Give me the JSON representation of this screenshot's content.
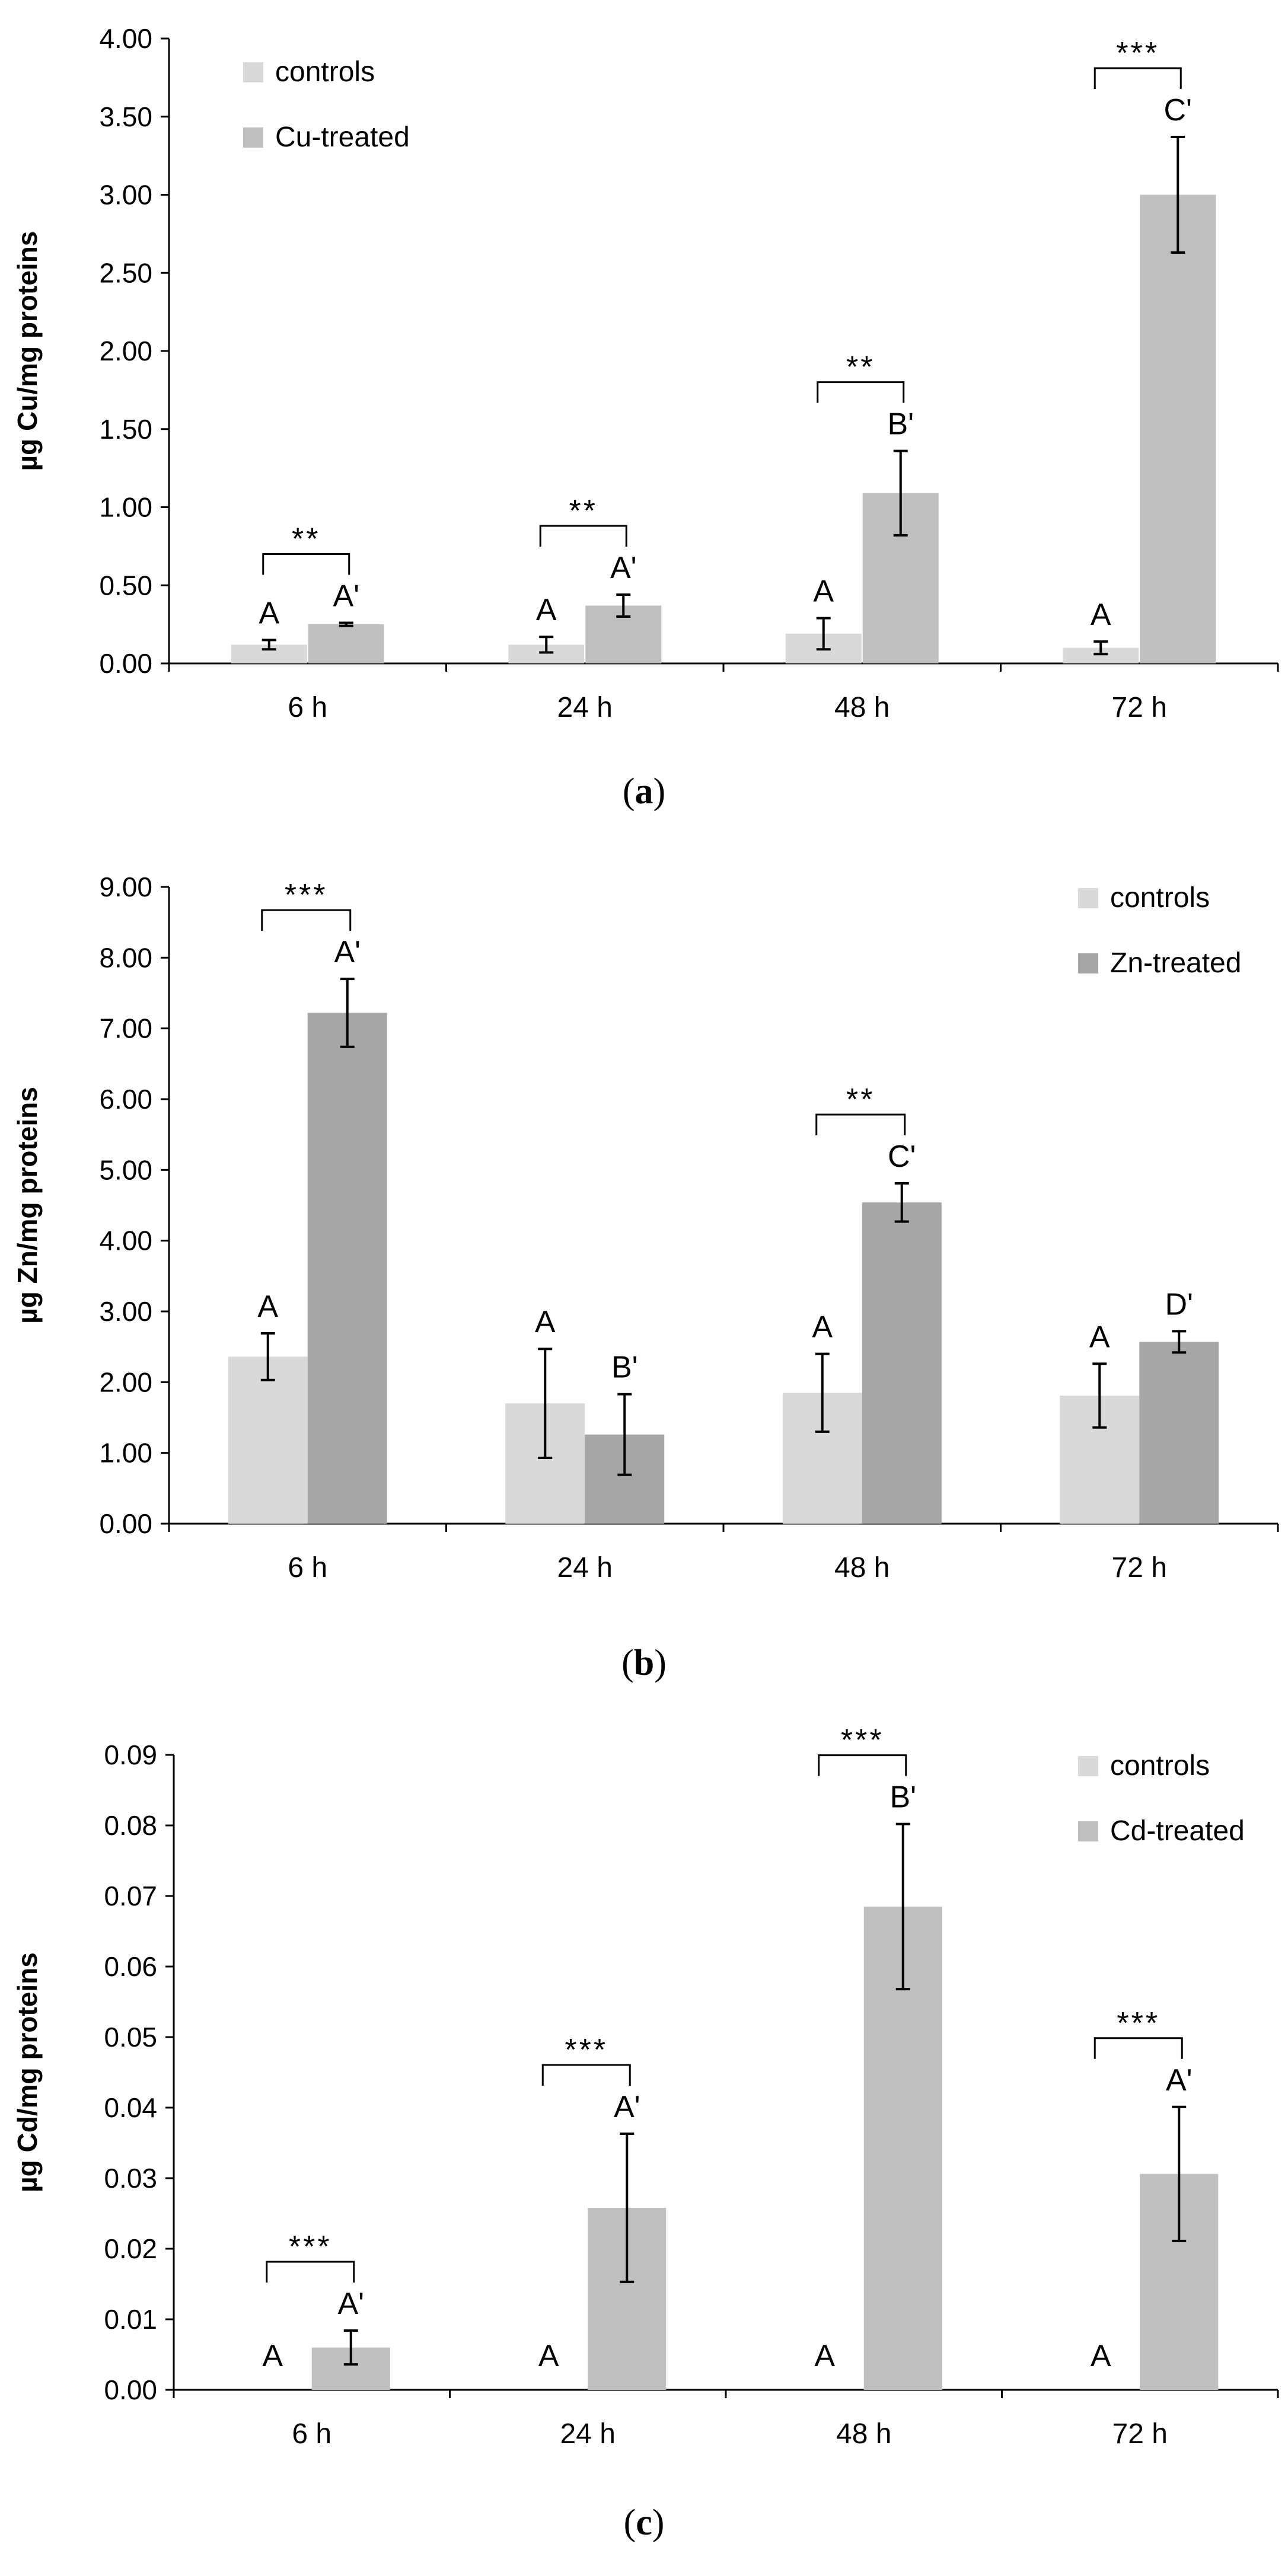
{
  "chart_data": [
    {
      "panel": "a",
      "panel_label": "a",
      "type": "bar",
      "categories": [
        "6 h",
        "24 h",
        "48 h",
        "72 h"
      ],
      "ylabel": "µg Cu/mg proteins",
      "ylim": [
        0,
        4
      ],
      "yticks": [
        "0.00",
        "0.50",
        "1.00",
        "1.50",
        "2.00",
        "2.50",
        "3.00",
        "3.50",
        "4.00"
      ],
      "legend_position": "top-left",
      "series": [
        {
          "name": "controls",
          "color": "#d9d9d9",
          "values": [
            0.12,
            0.12,
            0.19,
            0.1
          ],
          "errors": [
            0.03,
            0.05,
            0.1,
            0.04
          ],
          "letters": [
            "A",
            "A",
            "A",
            "A"
          ]
        },
        {
          "name": "Cu-treated",
          "color": "#bfbfbf",
          "values": [
            0.25,
            0.37,
            1.09,
            3.0
          ],
          "errors": [
            0.01,
            0.07,
            0.27,
            0.37
          ],
          "letters": [
            "A'",
            "A'",
            "B'",
            "C'"
          ]
        }
      ],
      "significance": [
        "**",
        "**",
        "**",
        "***"
      ]
    },
    {
      "panel": "b",
      "panel_label": "b",
      "type": "bar",
      "categories": [
        "6 h",
        "24 h",
        "48 h",
        "72 h"
      ],
      "ylabel": "µg Zn/mg proteins",
      "ylim": [
        0,
        9
      ],
      "yticks": [
        "0.00",
        "1.00",
        "2.00",
        "3.00",
        "4.00",
        "5.00",
        "6.00",
        "7.00",
        "8.00",
        "9.00"
      ],
      "legend_position": "top-right",
      "series": [
        {
          "name": "controls",
          "color": "#d9d9d9",
          "values": [
            2.36,
            1.7,
            1.85,
            1.81
          ],
          "errors": [
            0.33,
            0.77,
            0.55,
            0.45
          ],
          "letters": [
            "A",
            "A",
            "A",
            "A"
          ]
        },
        {
          "name": "Zn-treated",
          "color": "#a6a6a6",
          "values": [
            7.22,
            1.26,
            4.54,
            2.57
          ],
          "errors": [
            0.48,
            0.57,
            0.27,
            0.15
          ],
          "letters": [
            "A'",
            "B'",
            "C'",
            "D'"
          ]
        }
      ],
      "significance": [
        "***",
        "",
        "**",
        ""
      ]
    },
    {
      "panel": "c",
      "panel_label": "c",
      "type": "bar",
      "categories": [
        "6 h",
        "24 h",
        "48 h",
        "72 h"
      ],
      "ylabel": "µg Cd/mg proteins",
      "ylim": [
        0,
        0.09
      ],
      "yticks": [
        "0.00",
        "0.01",
        "0.02",
        "0.03",
        "0.04",
        "0.05",
        "0.06",
        "0.07",
        "0.08",
        "0.09"
      ],
      "legend_position": "top-right",
      "series": [
        {
          "name": "controls",
          "color": "#d9d9d9",
          "values": [
            0,
            0,
            0,
            0
          ],
          "errors": [
            0,
            0,
            0,
            0
          ],
          "letters": [
            "A",
            "A",
            "A",
            "A"
          ]
        },
        {
          "name": "Cd-treated",
          "color": "#bfbfbf",
          "values": [
            0.006,
            0.0258,
            0.0685,
            0.0306
          ],
          "errors": [
            0.0024,
            0.0105,
            0.0117,
            0.0095
          ],
          "letters": [
            "A'",
            "A'",
            "B'",
            "A'"
          ]
        }
      ],
      "significance": [
        "***",
        "***",
        "***",
        "***"
      ]
    }
  ]
}
